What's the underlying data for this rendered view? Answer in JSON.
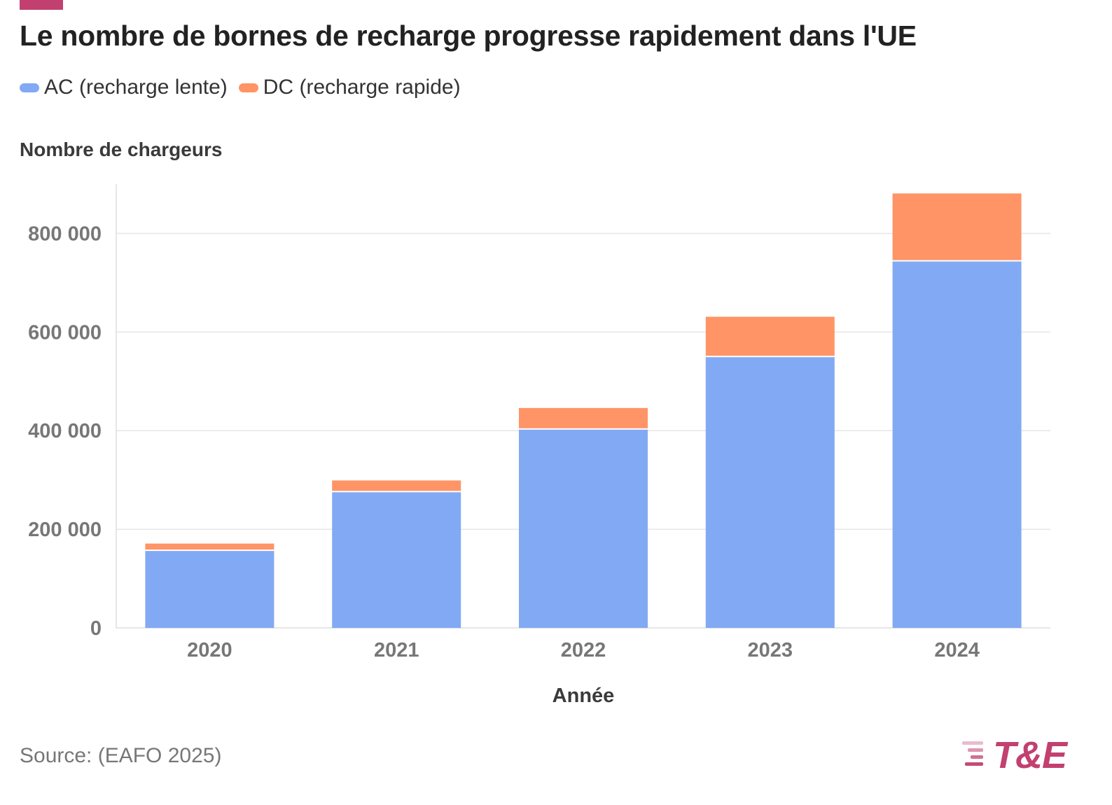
{
  "title": "Le nombre de bornes de recharge progresse rapidement dans l'UE",
  "colors": {
    "ac": "#82a9f3",
    "dc": "#ff9466",
    "accent": "#c2406f",
    "grid": "#e6e6e6"
  },
  "legend": [
    {
      "key": "ac",
      "label": "AC (recharge lente)"
    },
    {
      "key": "dc",
      "label": "DC (recharge rapide)"
    }
  ],
  "source": "Source: (EAFO 2025)",
  "logo": {
    "text": "T&E",
    "icon": "speed-lines-icon"
  },
  "chart_data": {
    "type": "bar",
    "stacked": true,
    "categories": [
      "2020",
      "2021",
      "2022",
      "2023",
      "2024"
    ],
    "series": [
      {
        "name": "AC (recharge lente)",
        "values": [
          156000,
          275000,
          402000,
          549000,
          743000
        ]
      },
      {
        "name": "DC (recharge rapide)",
        "values": [
          15000,
          24000,
          44000,
          82000,
          138000
        ]
      }
    ],
    "xlabel": "Année",
    "ylabel": "Nombre de chargeurs",
    "ylim": [
      0,
      900000
    ],
    "yticks": [
      0,
      200000,
      400000,
      600000,
      800000
    ],
    "ytick_labels": [
      "0",
      "200 000",
      "400 000",
      "600 000",
      "800 000"
    ],
    "grid": true,
    "legend_position": "top-left"
  }
}
